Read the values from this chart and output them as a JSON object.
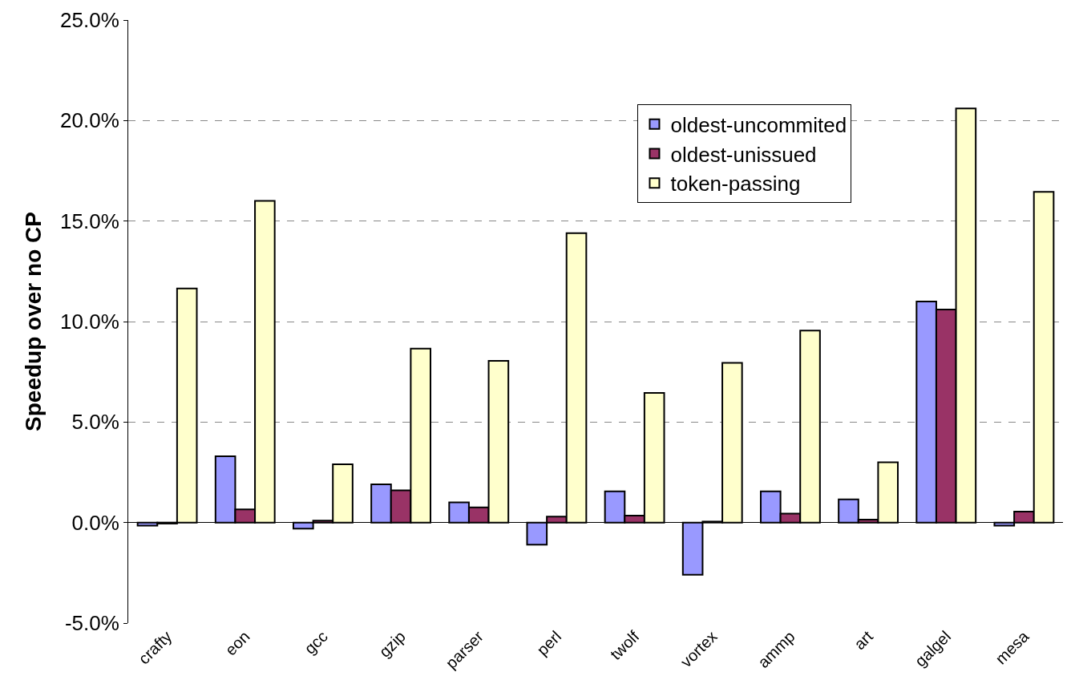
{
  "chart_data": {
    "type": "bar",
    "ylabel": "Speedup over no CP",
    "categories": [
      "crafty",
      "eon",
      "gcc",
      "gzip",
      "parser",
      "perl",
      "twolf",
      "vortex",
      "ammp",
      "art",
      "galgel",
      "mesa"
    ],
    "series": [
      {
        "name": "oldest-uncommited",
        "color": "#9999ff",
        "values": [
          -0.15,
          3.3,
          -0.3,
          1.9,
          1.0,
          -1.1,
          1.55,
          -2.6,
          1.55,
          1.15,
          11.0,
          -0.15
        ]
      },
      {
        "name": "oldest-unissued",
        "color": "#993366",
        "values": [
          -0.05,
          0.65,
          0.1,
          1.6,
          0.75,
          0.3,
          0.35,
          0.05,
          0.45,
          0.15,
          10.6,
          0.55
        ]
      },
      {
        "name": "token-passing",
        "color": "#ffffcc",
        "values": [
          11.65,
          16.0,
          2.9,
          8.65,
          8.05,
          14.4,
          6.45,
          7.95,
          9.55,
          3.0,
          20.6,
          16.45
        ]
      }
    ],
    "ylim": [
      -5,
      25
    ],
    "yticks": [
      {
        "value": -5,
        "label": "-5.0%"
      },
      {
        "value": 0,
        "label": "0.0%"
      },
      {
        "value": 5,
        "label": "5.0%"
      },
      {
        "value": 10,
        "label": "10.0%"
      },
      {
        "value": 15,
        "label": "15.0%"
      },
      {
        "value": 20,
        "label": "20.0%"
      },
      {
        "value": 25,
        "label": "25.0%"
      }
    ],
    "grid": "y",
    "legend": "top right"
  }
}
